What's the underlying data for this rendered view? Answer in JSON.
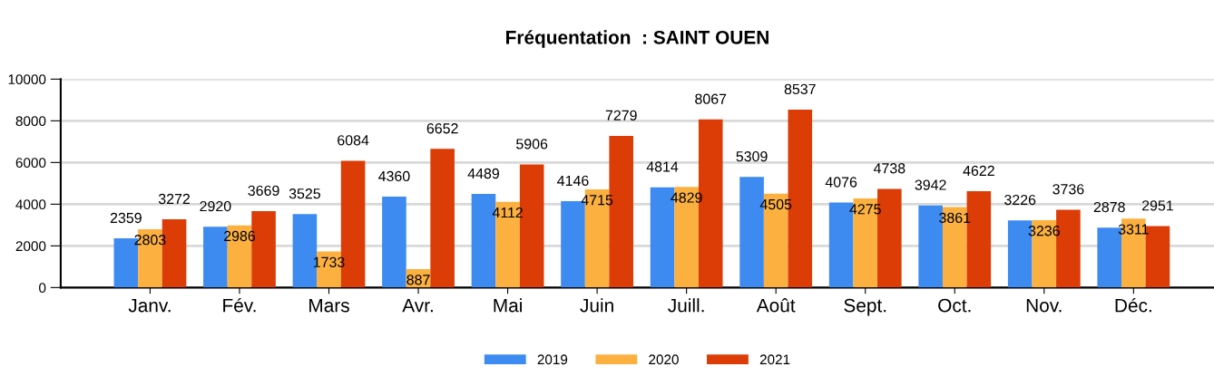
{
  "chart_data": {
    "type": "bar",
    "title": "Fréquentation  : SAINT OUEN",
    "categories": [
      "Janv.",
      "Fév.",
      "Mars",
      "Avr.",
      "Mai",
      "Juin",
      "Juill.",
      "Août",
      "Sept.",
      "Oct.",
      "Nov.",
      "Déc."
    ],
    "series": [
      {
        "name": "2019",
        "color": "#3d8af0",
        "values": [
          2359,
          2920,
          3525,
          4360,
          4489,
          4146,
          4814,
          5309,
          4076,
          3942,
          3226,
          2878
        ]
      },
      {
        "name": "2020",
        "color": "#fbb040",
        "values": [
          2803,
          2986,
          1733,
          887,
          4112,
          4715,
          4829,
          4505,
          4275,
          3861,
          3236,
          3311
        ]
      },
      {
        "name": "2021",
        "color": "#dc3d06",
        "values": [
          3272,
          3669,
          6084,
          6652,
          5906,
          7279,
          8067,
          8537,
          4738,
          4622,
          3736,
          2951
        ]
      }
    ],
    "ylim": [
      0,
      10000
    ],
    "yticks": [
      0,
      2000,
      4000,
      6000,
      8000,
      10000
    ],
    "grid": "y",
    "legend": "bottom",
    "data_labels": true
  }
}
